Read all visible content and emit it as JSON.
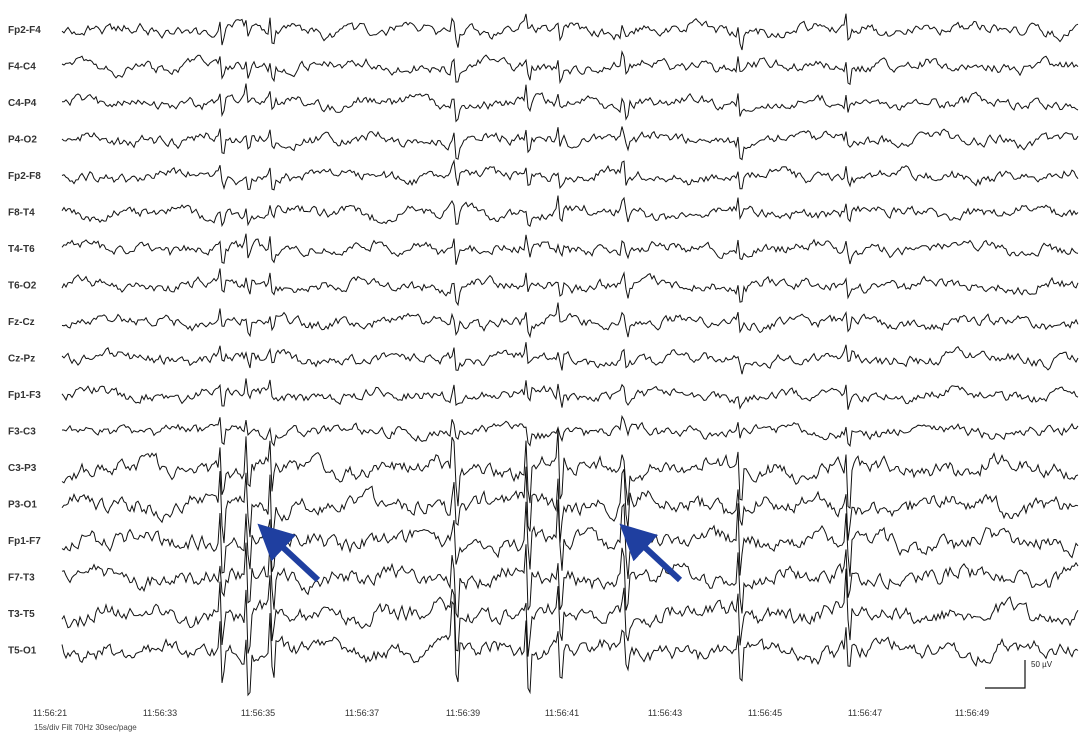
{
  "chart_data": {
    "type": "line",
    "channels": [
      "Fp2-F4",
      "F4-C4",
      "C4-P4",
      "P4-O2",
      "Fp2-F8",
      "F8-T4",
      "T4-T6",
      "T6-O2",
      "Fz-Cz",
      "Cz-Pz",
      "Fp1-F3",
      "F3-C3",
      "C3-P3",
      "P3-O1",
      "Fp1-F7",
      "F7-T3",
      "T3-T5",
      "T5-O1"
    ],
    "time_labels": [
      "11:56:21",
      "11:56:33",
      "11:56:35",
      "11:56:37",
      "11:56:39",
      "11:56:41",
      "11:56:43",
      "11:56:45",
      "11:56:47",
      "11:56:49"
    ],
    "annotations": [
      {
        "type": "arrow",
        "color": "#1f3fa0",
        "channel": "P3-O1",
        "time": "11:56:35"
      },
      {
        "type": "arrow",
        "color": "#1f3fa0",
        "channel": "P3-O1",
        "time": "11:56:41"
      }
    ],
    "scale_bar": "50 µV",
    "trace_color": "#111111"
  },
  "footer_text": "15s/div  Filt 70Hz  30sec/page"
}
